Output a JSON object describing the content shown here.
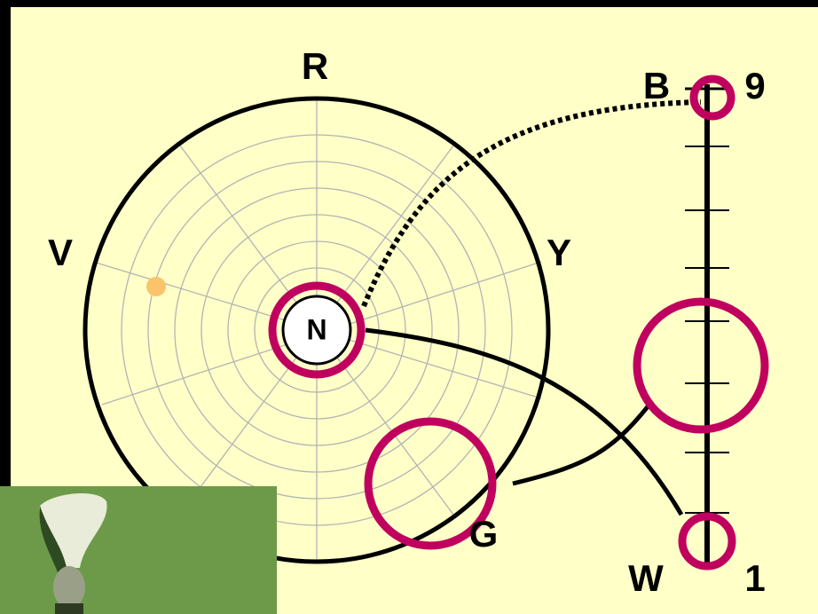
{
  "labels": {
    "top": "R",
    "left": "V",
    "right": "Y",
    "bottom": "G",
    "center": "N"
  },
  "scale": {
    "top_left": "B",
    "top_right": "9",
    "bottom_left": "W",
    "bottom_right": "1"
  }
}
